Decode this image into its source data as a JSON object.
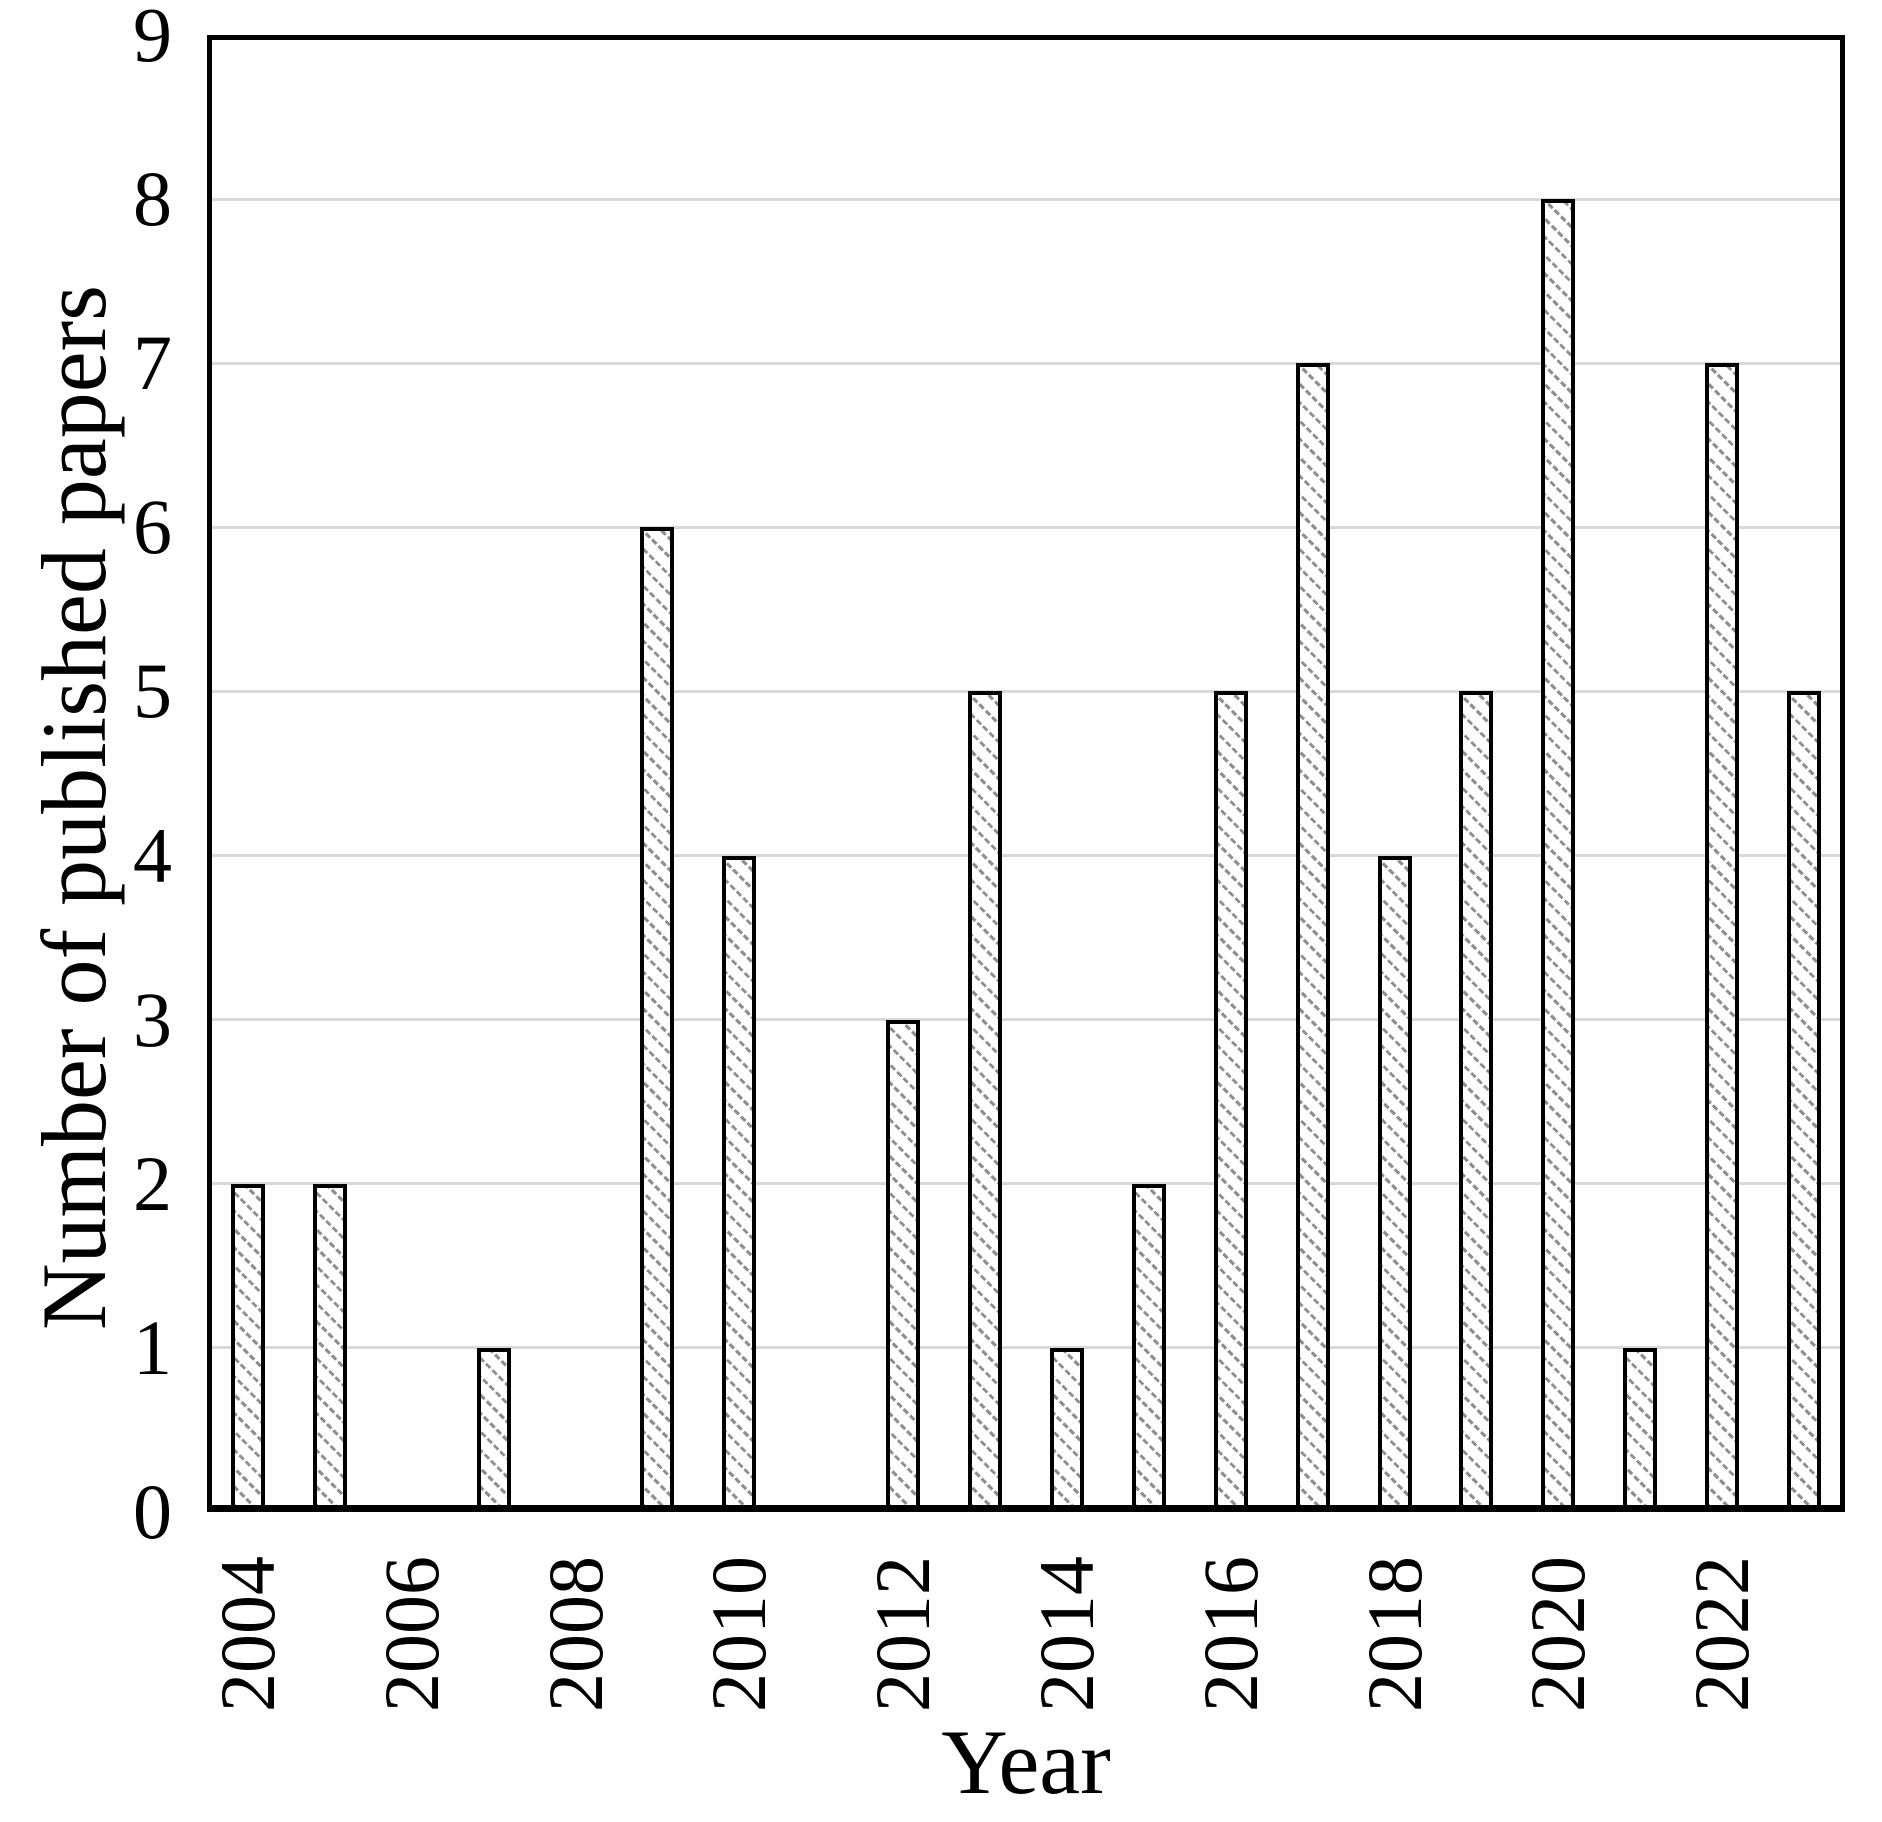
{
  "chart_data": {
    "type": "bar",
    "title": "",
    "xlabel": "Year",
    "ylabel": "Number of published papers",
    "categories": [
      2004,
      2005,
      2006,
      2007,
      2008,
      2009,
      2010,
      2011,
      2012,
      2013,
      2014,
      2015,
      2016,
      2017,
      2018,
      2019,
      2020,
      2021,
      2022,
      2023
    ],
    "values": [
      2,
      2,
      0,
      1,
      0,
      6,
      4,
      0,
      3,
      5,
      1,
      2,
      5,
      7,
      4,
      5,
      8,
      1,
      7,
      5
    ],
    "ylim": [
      0,
      9
    ],
    "yticks": [
      0,
      1,
      2,
      3,
      4,
      5,
      6,
      7,
      8,
      9
    ],
    "xtick_labels": [
      "2004",
      "2006",
      "2008",
      "2010",
      "2012",
      "2014",
      "2016",
      "2018",
      "2020",
      "2022"
    ],
    "grid": true,
    "legend": "none",
    "gridline_color": "#d9d9d9",
    "bar_fill": "#ffffff",
    "bar_hatch_color": "#8f8f8f",
    "bar_border_color": "#000000",
    "text_color": "#000000"
  }
}
